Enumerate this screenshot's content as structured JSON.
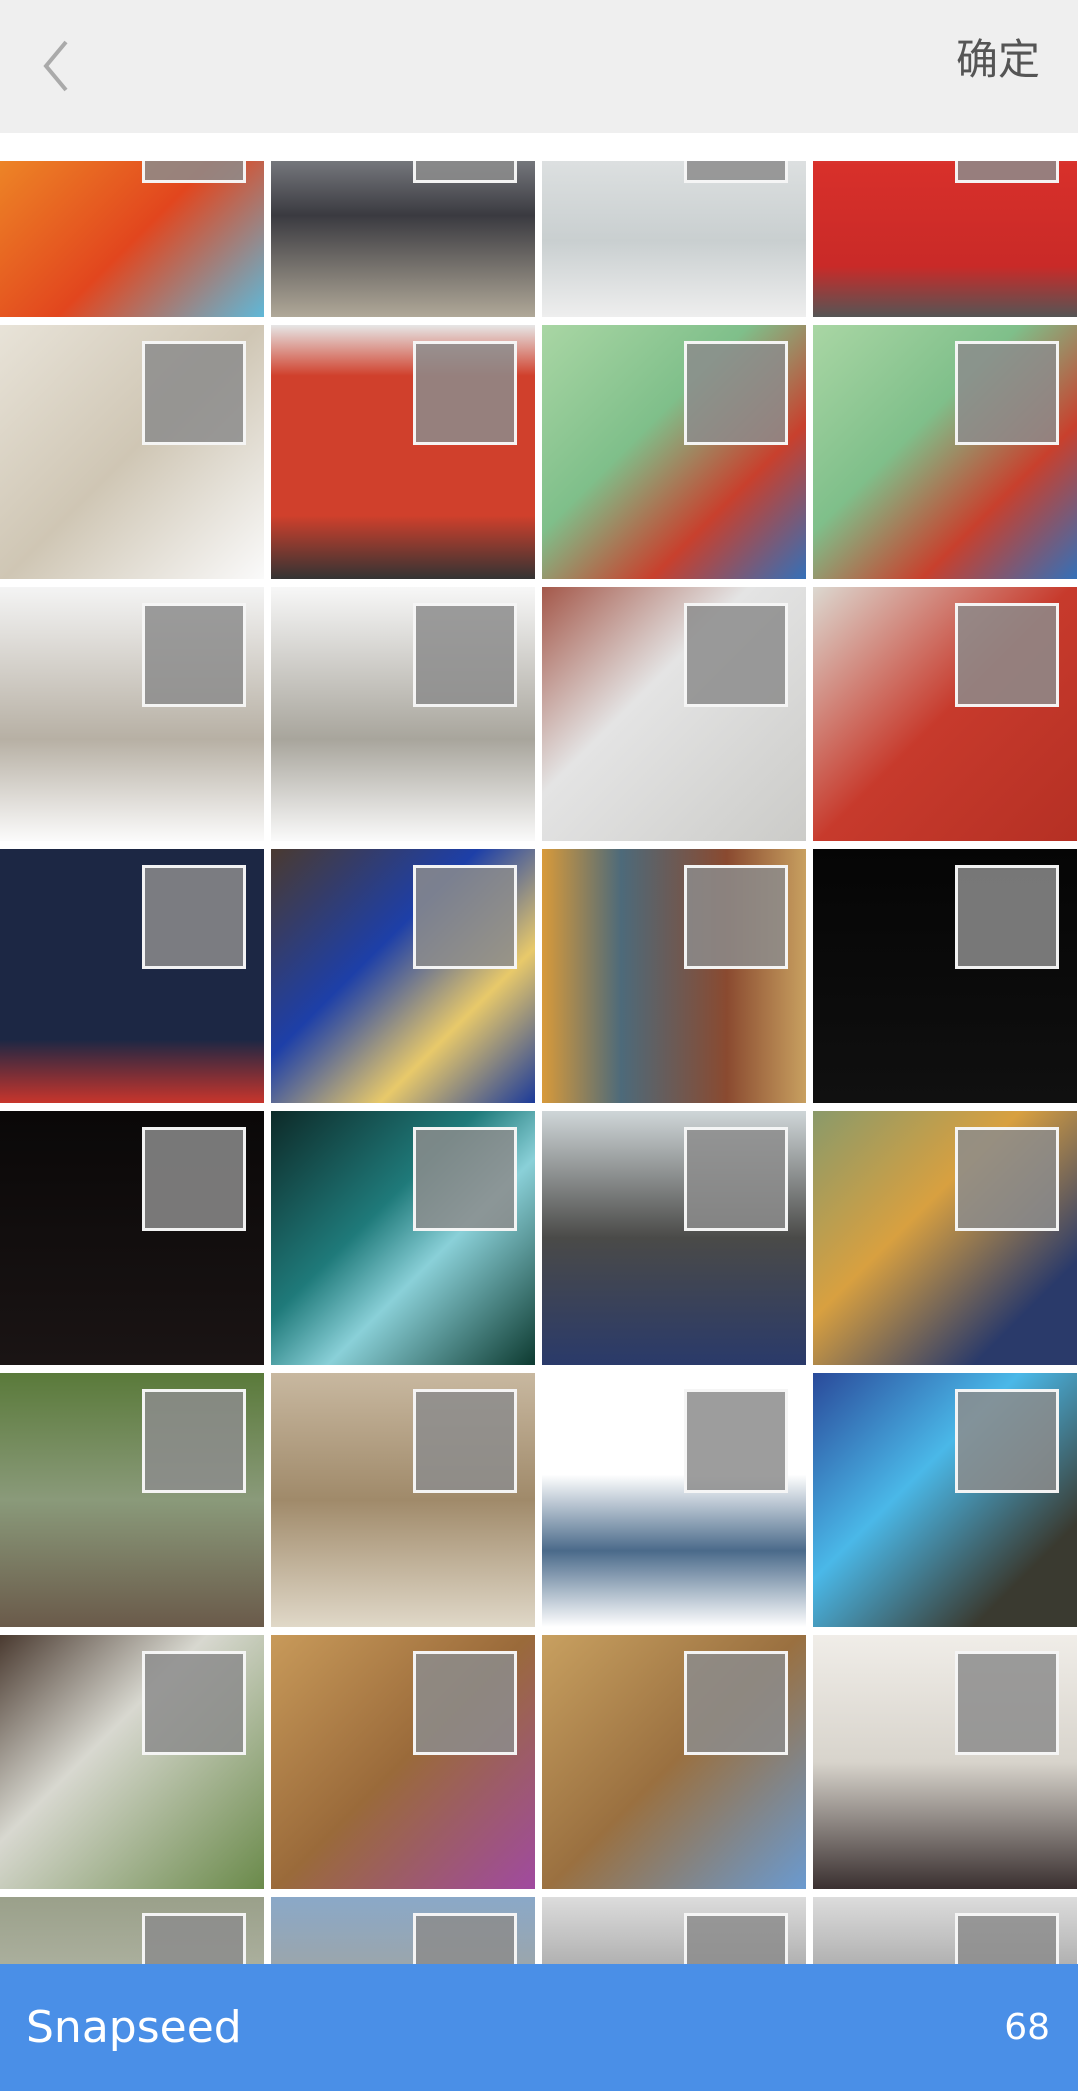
{
  "header": {
    "confirm": "确定"
  },
  "footer": {
    "album": "Snapseed",
    "count": "68"
  }
}
